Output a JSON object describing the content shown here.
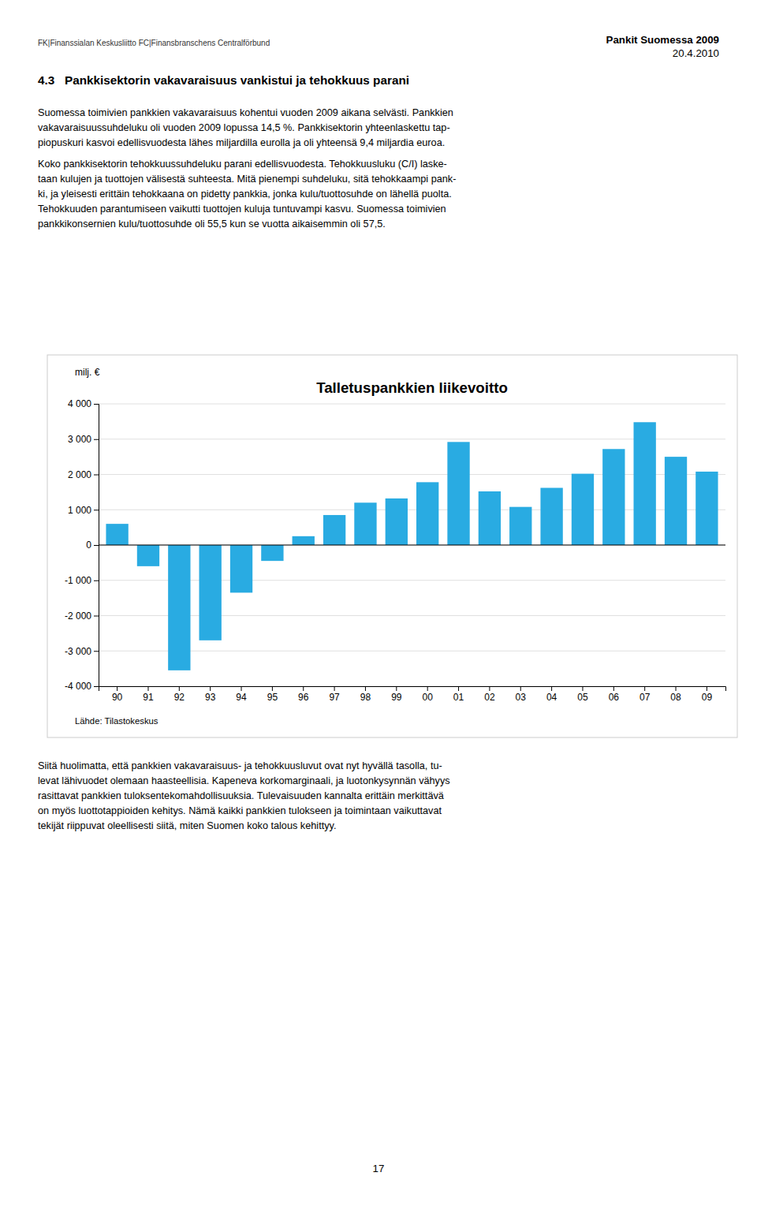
{
  "chart_data": {
    "type": "bar",
    "title": "Talletuspankkien liikevoitto",
    "ylabel": "milj. €",
    "source": "Lähde: Tilastokeskus",
    "categories": [
      "90",
      "91",
      "92",
      "93",
      "94",
      "95",
      "96",
      "97",
      "98",
      "99",
      "00",
      "01",
      "02",
      "03",
      "04",
      "05",
      "06",
      "07",
      "08",
      "09"
    ],
    "values": [
      600,
      -600,
      -3550,
      -2700,
      -1350,
      -450,
      250,
      850,
      1200,
      1320,
      1780,
      2920,
      1520,
      1080,
      1620,
      2020,
      2720,
      3480,
      2500,
      2080
    ],
    "color": "#29ABE2",
    "ylim": [
      -4000,
      4000
    ],
    "yticks": [
      {
        "value": -4000,
        "label": "-4 000"
      },
      {
        "value": -3000,
        "label": "-3 000"
      },
      {
        "value": -2000,
        "label": "-2 000"
      },
      {
        "value": -1000,
        "label": "-1 000"
      },
      0,
      {
        "value": 1000,
        "label": "1 000"
      },
      {
        "value": 2000,
        "label": "2 000"
      },
      {
        "value": 3000,
        "label": "3 000"
      },
      {
        "value": 4000,
        "label": "4 000"
      }
    ],
    "grid": true
  },
  "page_texts": {
    "header_logo": "FK|Finanssialan Keskusliitto FC|Finansbranschens Centralförbund",
    "header_right_line1": "Pankit Suomessa 2009",
    "header_right_line2": "20.4.2010",
    "section_title": "4.3   Pankkisektorin vakavaraisuus vankistui ja tehokkuus parani",
    "para1": "Suomessa toimivien pankkien vakavaraisuus kohentui vuoden 2009 aikana selvästi. Pankkien\nvakavaraisuussuhdeluku oli vuoden 2009 lopussa 14,5 %. Pankkisektorin yhteenlaskettu tap-\npiopuskuri kasvoi edellisvuodesta lähes miljardilla eurolla ja oli yhteensä 9,4 miljardia euroa.",
    "para2": "Koko pankkisektorin tehokkuussuhdeluku parani edellisvuodesta. Tehokkuusluku (C/I) laske-\ntaan kulujen ja tuottojen välisestä suhteesta. Mitä pienempi suhdeluku, sitä tehokkaampi pank-\nki, ja yleisesti erittäin tehokkaana on pidetty pankkia, jonka kulu/tuottosuhde on lähellä puolta.\nTehokkuuden parantumiseen vaikutti tuottojen kuluja tuntuvampi kasvu. Suomessa toimivien\npankkikonsernien kulu/tuottosuhde oli 55,5 kun se vuotta aikaisemmin oli 57,5.",
    "para3": "Siitä huolimatta, että pankkien vakavaraisuus- ja tehokkuusluvut ovat nyt hyvällä tasolla, tu-\nlevat lähivuodet olemaan haasteellisia. Kapeneva korkomarginaali, ja luotonkysynnän vähyys\nrasittavat pankkien tuloksentekomahdollisuuksia. Tulevaisuuden kannalta erittäin merkittävä\non myös luottotappioiden kehitys. Nämä kaikki pankkien tulokseen ja toimintaan vaikuttavat\ntekijät riippuvat oleellisesti siitä, miten Suomen koko talous kehittyy.",
    "page_number": "17"
  }
}
